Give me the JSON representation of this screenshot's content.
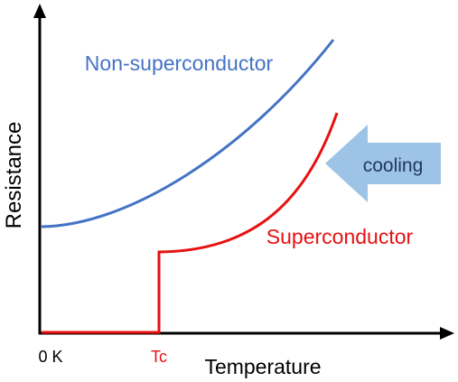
{
  "diagram": {
    "y_axis_label": "Resistance",
    "x_axis_label": "Temperature",
    "origin_label": "0 K",
    "tc_label": "Tc",
    "curve_labels": {
      "non_superconductor": "Non-superconductor",
      "superconductor": "Superconductor"
    },
    "arrow_label": "cooling",
    "colors": {
      "axis": "#000000",
      "non_superconductor": "#4472c4",
      "superconductor": "#e81010",
      "arrow_fill": "#9dc3e6",
      "arrow_text": "#1f3864"
    }
  }
}
